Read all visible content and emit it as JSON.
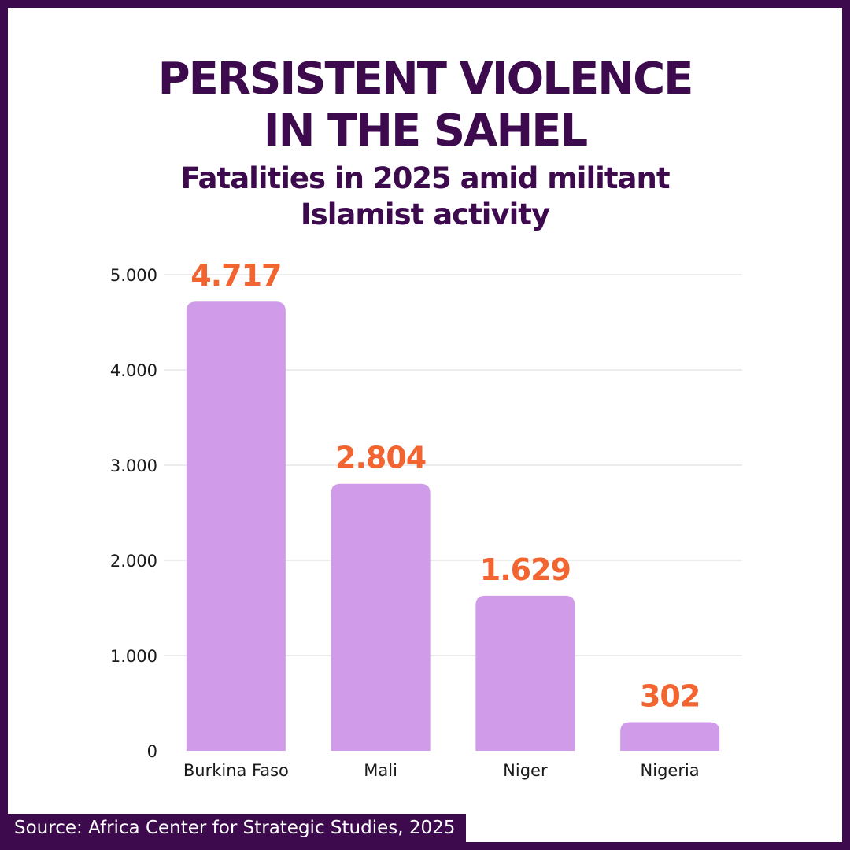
{
  "colors": {
    "frame": "#3d0a4d",
    "bar": "#d09ce9",
    "value_label": "#f26430",
    "axis_text": "#1a1a1a",
    "grid": "#d9d9d9"
  },
  "chart_data": {
    "type": "bar",
    "title": [
      "PERSISTENT VIOLENCE",
      "IN THE SAHEL"
    ],
    "subtitle": [
      "Fatalities in 2025 amid militant",
      "Islamist activity"
    ],
    "categories": [
      "Burkina Faso",
      "Mali",
      "Niger",
      "Nigeria"
    ],
    "values": [
      4717,
      2804,
      1629,
      302
    ],
    "value_labels": [
      "4.717",
      "2.804",
      "1.629",
      "302"
    ],
    "ylim": [
      0,
      5000
    ],
    "yticks": [
      0,
      1000,
      2000,
      3000,
      4000,
      5000
    ],
    "ytick_labels": [
      "0",
      "1.000",
      "2.000",
      "3.000",
      "4.000",
      "5.000"
    ],
    "xlabel": "",
    "ylabel": "",
    "grid": true,
    "legend": "none"
  },
  "source": "Source: Africa Center for Strategic Studies, 2025"
}
